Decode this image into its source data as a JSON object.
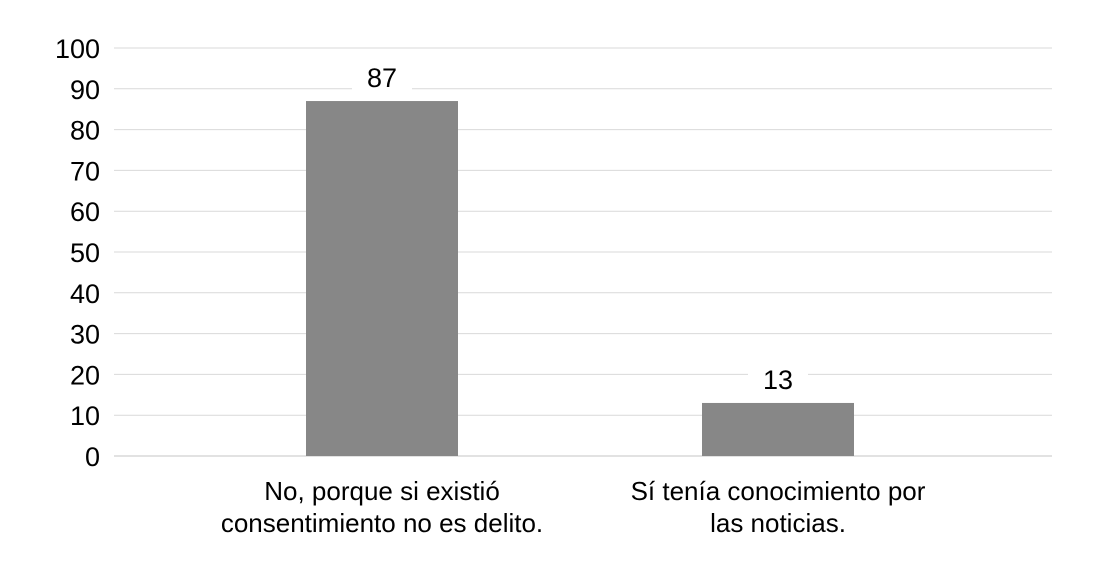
{
  "chart_data": {
    "type": "bar",
    "categories": [
      [
        "No, porque si existió",
        "consentimiento no es delito."
      ],
      [
        "Sí tenía conocimiento por",
        "las noticias."
      ]
    ],
    "values": [
      87,
      13
    ],
    "data_labels": [
      "87",
      "13"
    ],
    "ylim": [
      0,
      100
    ],
    "yticks": [
      0,
      10,
      20,
      30,
      40,
      50,
      60,
      70,
      80,
      90,
      100
    ],
    "grid": true,
    "legend": "none",
    "colors": {
      "bar": "#878787",
      "grid": "#d9d9d9",
      "text": "#000000"
    }
  }
}
